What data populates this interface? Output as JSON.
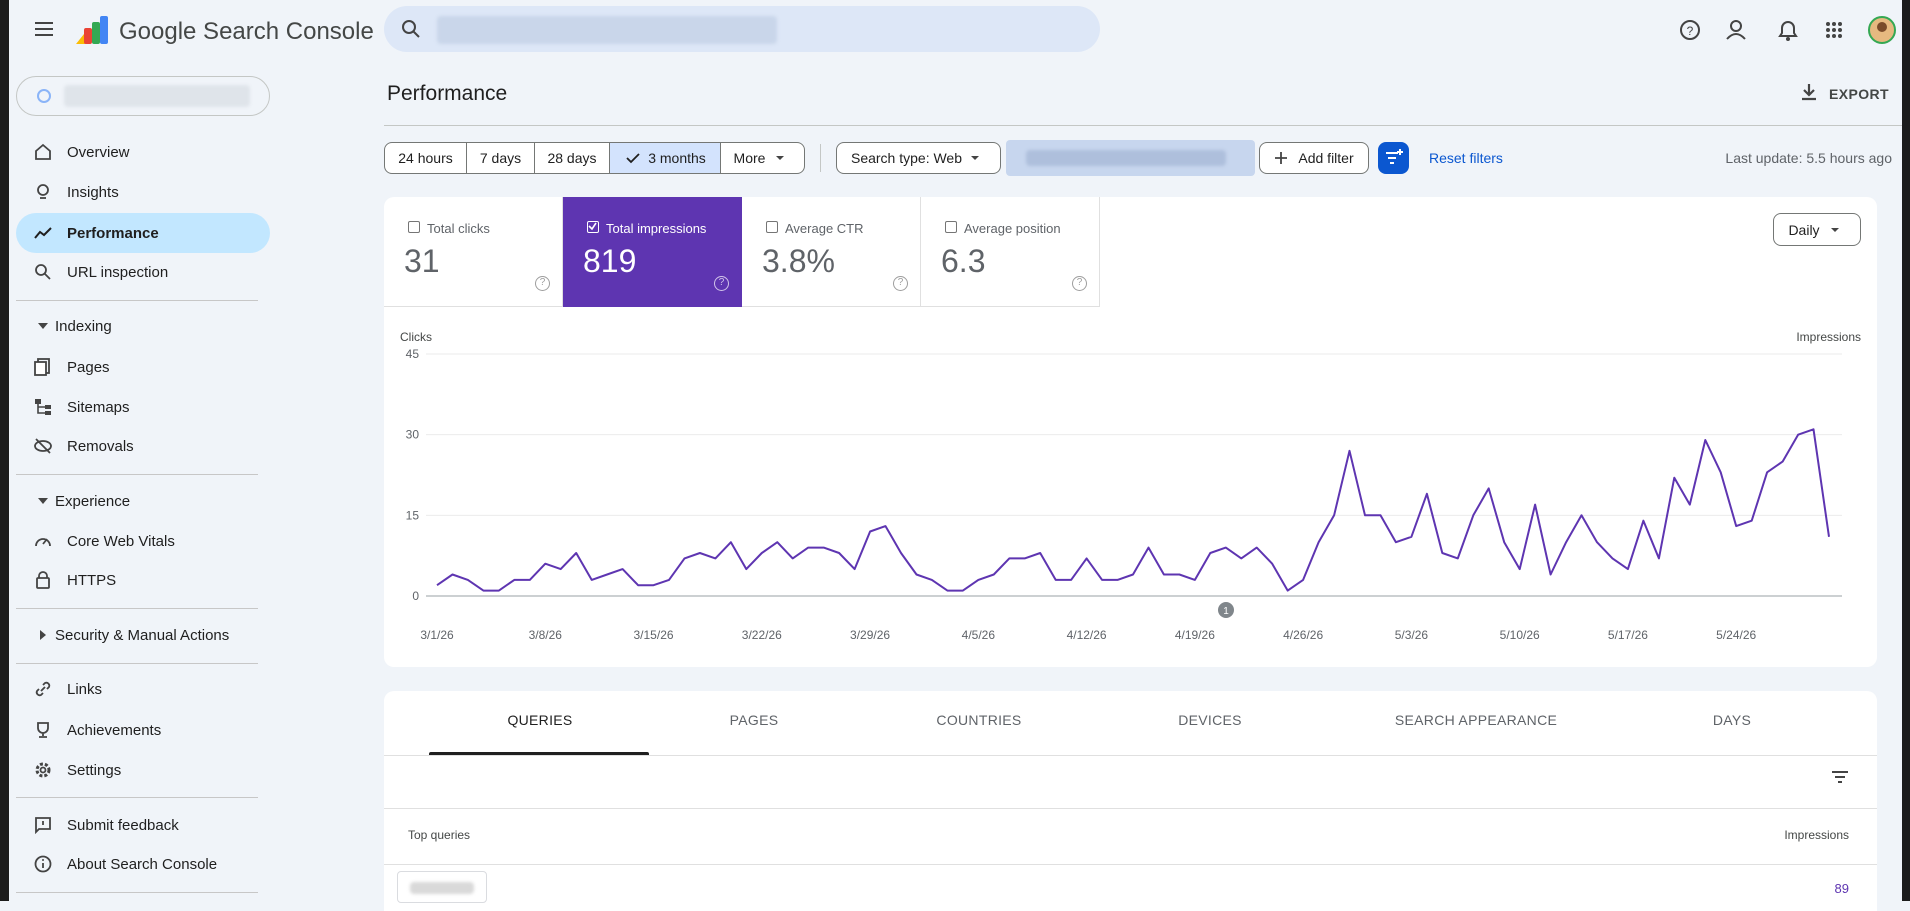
{
  "header": {
    "product": "Google Search Console"
  },
  "nav": {
    "top": [
      "Overview",
      "Insights",
      "Performance",
      "URL inspection"
    ],
    "indexing": {
      "title": "Indexing",
      "items": [
        "Pages",
        "Sitemaps",
        "Removals"
      ]
    },
    "experience": {
      "title": "Experience",
      "items": [
        "Core Web Vitals",
        "HTTPS"
      ]
    },
    "security": "Security & Manual Actions",
    "more": [
      "Links",
      "Achievements",
      "Settings"
    ],
    "footer": [
      "Submit feedback",
      "About Search Console"
    ]
  },
  "page": {
    "title": "Performance",
    "export": "EXPORT",
    "date_ranges": [
      "24 hours",
      "7 days",
      "28 days",
      "3 months",
      "More"
    ],
    "selected_range": 3,
    "search_type": "Search type: Web",
    "add_filter": "Add filter",
    "reset_filters": "Reset filters",
    "last_update": "Last update: 5.5 hours ago"
  },
  "metrics": [
    {
      "label": "Total clicks",
      "value": "31",
      "checked": false
    },
    {
      "label": "Total impressions",
      "value": "819",
      "checked": true
    },
    {
      "label": "Average CTR",
      "value": "3.8%",
      "checked": false
    },
    {
      "label": "Average position",
      "value": "6.3",
      "checked": false
    }
  ],
  "granularity": "Daily",
  "chart": {
    "type": "line",
    "y_label": "Clicks",
    "y2_label": "Impressions",
    "color": "#5e35b1",
    "annotation": "1",
    "ylim": [
      0,
      45
    ],
    "yticks": [
      0,
      15,
      30,
      45
    ],
    "categories": [
      "3/1/26",
      null,
      null,
      null,
      null,
      null,
      null,
      "3/8/26",
      null,
      null,
      null,
      null,
      null,
      null,
      "3/15/26",
      null,
      null,
      null,
      null,
      null,
      null,
      "3/22/26",
      null,
      null,
      null,
      null,
      null,
      null,
      "3/29/26",
      null,
      null,
      null,
      null,
      null,
      null,
      "4/5/26",
      null,
      null,
      null,
      null,
      null,
      null,
      "4/12/26",
      null,
      null,
      null,
      null,
      null,
      null,
      "4/19/26",
      null,
      null,
      null,
      null,
      null,
      null,
      "4/26/26",
      null,
      null,
      null,
      null,
      null,
      null,
      "5/3/26",
      null,
      null,
      null,
      null,
      null,
      null,
      "5/10/26",
      null,
      null,
      null,
      null,
      null,
      null,
      "5/17/26",
      null,
      null,
      null,
      null,
      null,
      null,
      "5/24/26",
      null,
      null,
      null,
      null,
      null,
      null
    ],
    "values": [
      2,
      4,
      3,
      1,
      1,
      3,
      3,
      6,
      5,
      8,
      3,
      4,
      5,
      2,
      2,
      3,
      7,
      8,
      7,
      10,
      5,
      8,
      10,
      7,
      9,
      9,
      8,
      5,
      12,
      13,
      8,
      4,
      3,
      1,
      1,
      3,
      4,
      7,
      7,
      8,
      3,
      3,
      7,
      3,
      3,
      4,
      9,
      4,
      4,
      3,
      8,
      9,
      7,
      9,
      6,
      1,
      3,
      10,
      15,
      27,
      15,
      15,
      10,
      11,
      19,
      8,
      7,
      15,
      20,
      10,
      5,
      17,
      4,
      10,
      15,
      10,
      7,
      5,
      14,
      7,
      22,
      17,
      29,
      23,
      13,
      14,
      23,
      25,
      30,
      31,
      11
    ]
  },
  "tabs": [
    "QUERIES",
    "PAGES",
    "COUNTRIES",
    "DEVICES",
    "SEARCH APPEARANCE",
    "DAYS"
  ],
  "table": {
    "header": [
      "Top queries",
      "Impressions"
    ],
    "rows": [
      {
        "impressions": 89
      }
    ]
  }
}
